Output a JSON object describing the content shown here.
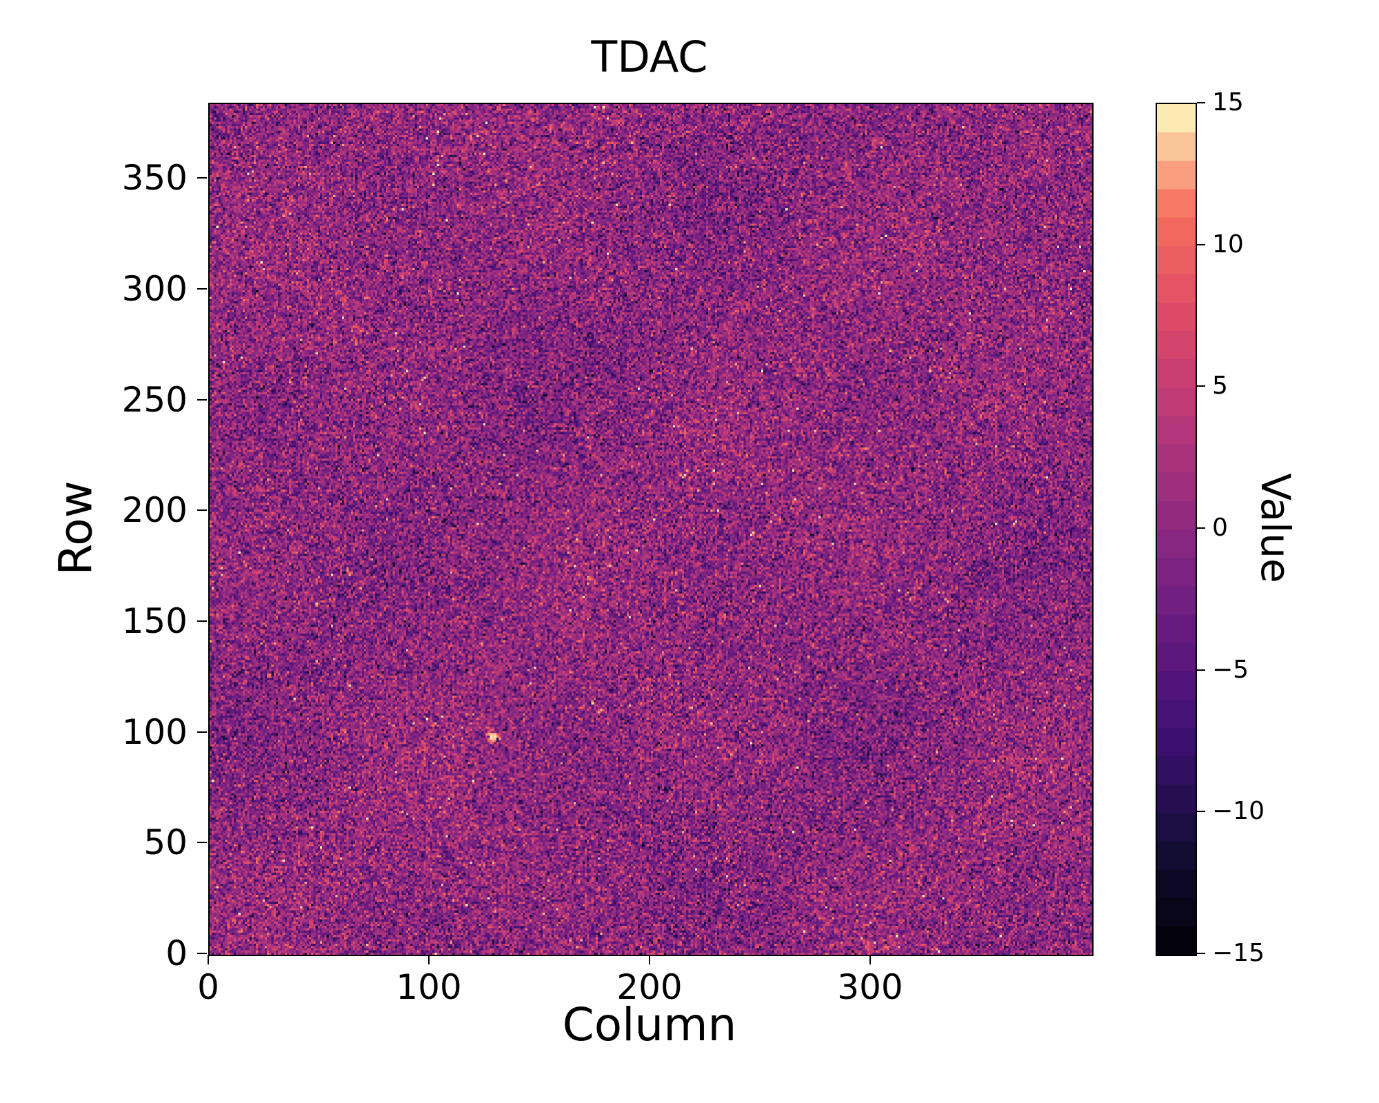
{
  "figure": {
    "title": "TDAC",
    "xlabel": "Column",
    "ylabel": "Row",
    "colorbar_label": "Value"
  },
  "chart_data": {
    "type": "heatmap",
    "title": "TDAC",
    "xlabel": "Column",
    "ylabel": "Row",
    "grid_shape_rows_cols": [
      384,
      400
    ],
    "x_range": [
      0,
      400
    ],
    "y_range": [
      0,
      384
    ],
    "x_tick_values": [
      0,
      100,
      200,
      300
    ],
    "x_tick_labels": [
      "0",
      "100",
      "200",
      "300"
    ],
    "y_tick_values": [
      0,
      50,
      100,
      150,
      200,
      250,
      300,
      350
    ],
    "y_tick_labels": [
      "0",
      "50",
      "100",
      "150",
      "200",
      "250",
      "300",
      "350"
    ],
    "origin": "lower",
    "colormap": "magma",
    "colorbar": {
      "label": "Value",
      "min": -15,
      "max": 15,
      "levels": 30,
      "tick_values": [
        15,
        10,
        5,
        0,
        -5,
        -10,
        -15
      ],
      "tick_labels": [
        "15",
        "10",
        "5",
        "0",
        "−5",
        "−10",
        "−15"
      ]
    },
    "values_description": "Per-pixel random noise, approximately Gaussian with mean 0 and standard deviation ~4.3, clipped to [-15, 15]; predominantly magenta-purple background with scattered orange, pale-yellow and near-black speckles",
    "anomaly": {
      "description": "small bright (near-white) pixel cluster",
      "col": 128,
      "row": 98
    },
    "grid": false,
    "legend": false
  }
}
